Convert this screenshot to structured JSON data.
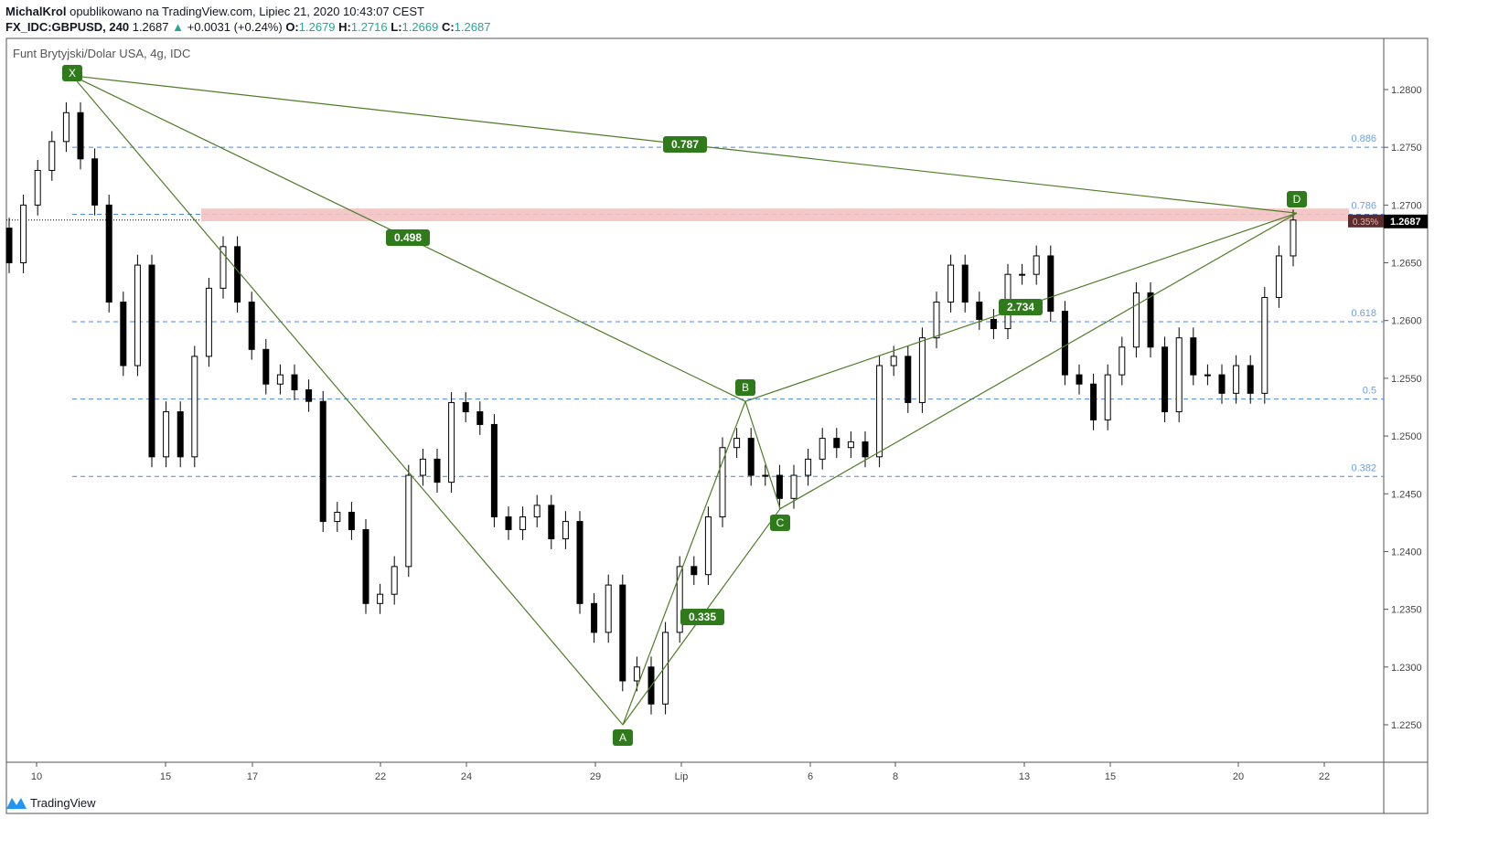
{
  "header": {
    "author": "MichalKrol",
    "published": "opublikowano na TradingView.com, Lipiec 21, 2020 10:43:07 CEST",
    "symbol": "FX_IDC:GBPUSD, 240",
    "last": "1.2687",
    "change": "+0.0031 (+0.24%)",
    "o_label": "O:",
    "o": "1.2679",
    "h_label": "H:",
    "h": "1.2716",
    "l_label": "L:",
    "l": "1.2669",
    "c_label": "C:",
    "c": "1.2687"
  },
  "legend": "Funt Brytyjski/Dolar USA, 4g, IDC",
  "footer": {
    "brand": "TradingView"
  },
  "colors": {
    "up": "#ffffff",
    "down": "#000000",
    "pattern": "#4e7d27",
    "label_bg": "#2f7a1b",
    "fib": "#4a86e8",
    "zone": "#f4c2c2",
    "accent_up": "#26a69a"
  },
  "chart_data": {
    "type": "candlestick",
    "title": "",
    "x_tick_labels": [
      "10",
      "15",
      "17",
      "22",
      "24",
      "29",
      "Lip",
      "6",
      "8",
      "13",
      "15",
      "20",
      "22"
    ],
    "y_tick_labels": [
      "1.2800",
      "1.2750",
      "1.2700",
      "1.2650",
      "1.2600",
      "1.2550",
      "1.2500",
      "1.2450",
      "1.2400",
      "1.2350",
      "1.2300",
      "1.2250"
    ],
    "ylim": [
      1.2215,
      1.284
    ],
    "first_open": 1.268,
    "closes": [
      1.265,
      1.27,
      1.273,
      1.2755,
      1.278,
      1.274,
      1.27,
      1.2616,
      1.2561,
      1.2648,
      1.2482,
      1.2521,
      1.2482,
      1.2569,
      1.2628,
      1.2664,
      1.2616,
      1.2575,
      1.2545,
      1.2553,
      1.254,
      1.253,
      1.2426,
      1.2434,
      1.2419,
      1.2355,
      1.2363,
      1.2387,
      1.2466,
      1.248,
      1.246,
      1.2529,
      1.2521,
      1.251,
      1.243,
      1.2419,
      1.243,
      1.244,
      1.2411,
      1.2426,
      1.2355,
      1.233,
      1.2371,
      1.2288,
      1.23,
      1.2268,
      1.233,
      1.2387,
      1.238,
      1.243,
      1.249,
      1.2498,
      1.2466,
      1.2466,
      1.2446,
      1.2466,
      1.248,
      1.2498,
      1.249,
      1.2495,
      1.2482,
      1.2561,
      1.2569,
      1.2529,
      1.2585,
      1.2616,
      1.2648,
      1.2616,
      1.2601,
      1.2593,
      1.264,
      1.264,
      1.2656,
      1.2608,
      1.2553,
      1.2545,
      1.2514,
      1.2553,
      1.2577,
      1.2624,
      1.2577,
      1.2521,
      1.2585,
      1.2553,
      1.2553,
      1.2537,
      1.2561,
      1.2537,
      1.262,
      1.2656,
      1.2687
    ],
    "last_price_label": "1.2687",
    "pattern_points": [
      {
        "label": "X",
        "price": 1.2812
      },
      {
        "label": "A",
        "price": 1.225
      },
      {
        "label": "B",
        "price": 1.253
      },
      {
        "label": "C",
        "price": 1.2437
      },
      {
        "label": "D",
        "price": 1.2693
      }
    ],
    "ratios": [
      {
        "legs": "XD",
        "label": "0.787"
      },
      {
        "legs": "XB",
        "label": "0.498"
      },
      {
        "legs": "AC",
        "label": "0.335"
      },
      {
        "legs": "BD",
        "label": "2.734"
      }
    ],
    "fib_levels": [
      {
        "label": "0.886",
        "price": 1.275
      },
      {
        "label": "0.786",
        "price": 1.2692
      },
      {
        "label": "0.618",
        "price": 1.2599
      },
      {
        "label": "0.5",
        "price": 1.2532
      },
      {
        "label": "0.382",
        "price": 1.2465
      }
    ],
    "zone": {
      "from": 1.2686,
      "to": 1.2697
    },
    "zone_label": "0.35%"
  }
}
